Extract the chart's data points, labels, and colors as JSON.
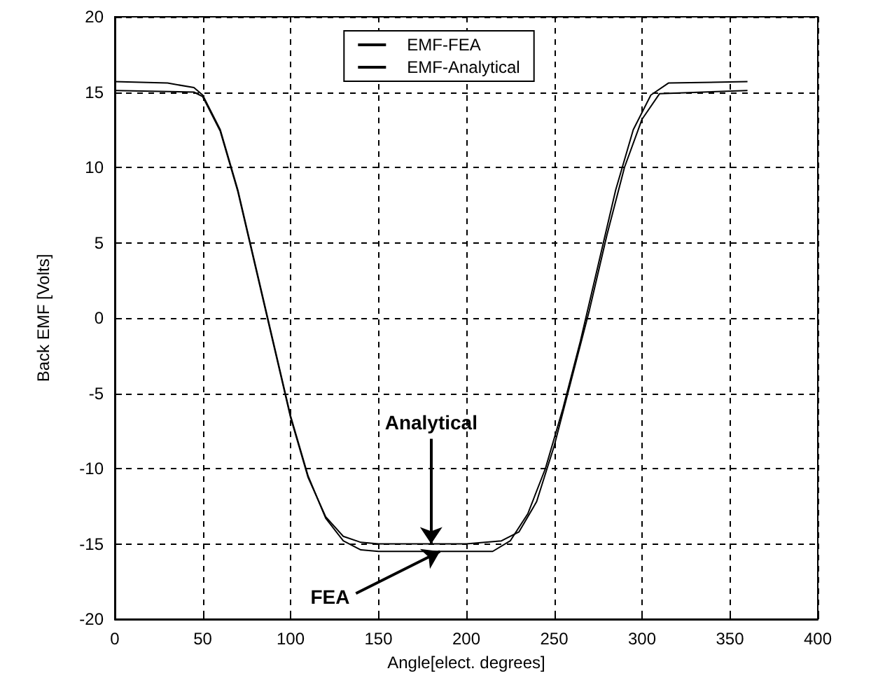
{
  "chart_data": {
    "type": "line",
    "xlabel": "Angle[elect. degrees]",
    "ylabel": "Back EMF [Volts]",
    "x": [
      0,
      30,
      45,
      50,
      60,
      70,
      80,
      90,
      100,
      110,
      120,
      130,
      140,
      150,
      200,
      215,
      225,
      235,
      245,
      255,
      265,
      275,
      285,
      295,
      305,
      315,
      360
    ],
    "series": [
      {
        "name": "EMF-FEA",
        "color": "#000000",
        "values": [
          15.7,
          15.6,
          15.3,
          14.8,
          12.5,
          8.5,
          3.5,
          -1.5,
          -6.5,
          -10.5,
          -13.3,
          -14.8,
          -15.4,
          -15.5,
          -15.5,
          -15.5,
          -14.8,
          -13,
          -10,
          -6,
          -1.5,
          3.5,
          8.5,
          12.5,
          14.8,
          15.6,
          15.7
        ]
      },
      {
        "name": "EMF-Analytical",
        "color": "#000000",
        "x": [
          0,
          45,
          50,
          60,
          70,
          80,
          90,
          100,
          110,
          120,
          130,
          140,
          150,
          200,
          220,
          230,
          240,
          250,
          260,
          270,
          280,
          290,
          300,
          310,
          360
        ],
        "values": [
          15.1,
          15.0,
          14.7,
          12.4,
          8.4,
          3.4,
          -1.6,
          -6.6,
          -10.6,
          -13.2,
          -14.5,
          -14.9,
          -15.0,
          -15.0,
          -14.8,
          -14.2,
          -12.2,
          -8.5,
          -4,
          0.5,
          5.5,
          10,
          13.2,
          14.9,
          15.1
        ]
      }
    ],
    "annotations": [
      {
        "text": "Analytical",
        "x": 180,
        "y": -15
      },
      {
        "text": "FEA",
        "x": 185,
        "y": -15.5
      }
    ],
    "xlim": [
      0,
      400
    ],
    "xticks": [
      0,
      50,
      100,
      150,
      200,
      250,
      300,
      350,
      400
    ],
    "ylim": [
      -20,
      20
    ],
    "yticks": [
      -20,
      -15,
      -10,
      -5,
      0,
      5,
      10,
      15,
      20
    ],
    "grid": true,
    "legend": "top",
    "marker": "none",
    "line_style": "solid"
  }
}
